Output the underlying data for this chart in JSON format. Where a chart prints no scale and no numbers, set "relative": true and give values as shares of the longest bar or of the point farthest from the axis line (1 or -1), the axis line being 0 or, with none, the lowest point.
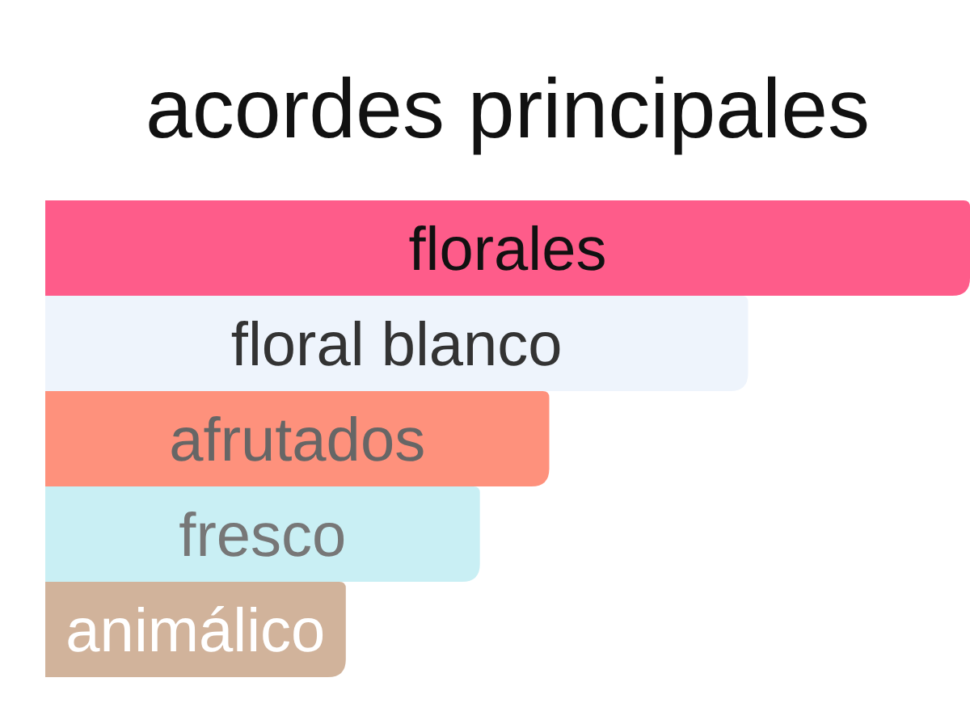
{
  "chart_data": {
    "type": "bar",
    "title": "acordes principales",
    "orientation": "horizontal",
    "relative": true,
    "categories": [
      "florales",
      "floral blanco",
      "afrutados",
      "fresco",
      "animálico"
    ],
    "values": [
      1,
      0.76,
      0.545,
      0.47,
      0.325
    ],
    "colors": [
      "#fe5c8a",
      "#eef4fc",
      "#fe917c",
      "#c9eff4",
      "#d1b39b"
    ]
  }
}
